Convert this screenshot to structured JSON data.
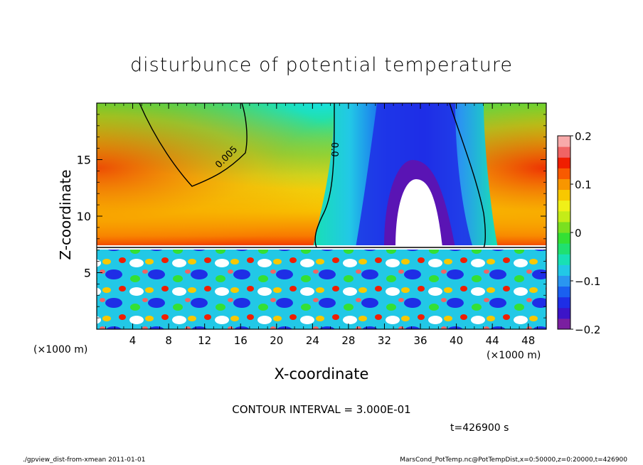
{
  "chart_data": {
    "type": "heatmap",
    "title": "disturbunce of potential temperature",
    "xlabel": "X-coordinate",
    "ylabel": "Z-coordinate",
    "x_units": "(×1000 m)",
    "y_units": "(×1000 m)",
    "x_range": [
      0,
      50
    ],
    "y_range": [
      0,
      20
    ],
    "x_ticks": [
      4,
      8,
      12,
      16,
      20,
      24,
      28,
      32,
      36,
      40,
      44,
      48
    ],
    "y_ticks": [
      5,
      10,
      15
    ],
    "colorbar": {
      "range": [
        -0.2,
        0.2
      ],
      "tick_labels": [
        "0.2",
        "0.1",
        "0",
        "−0.1",
        "−0.2"
      ],
      "tick_values": [
        0.2,
        0.1,
        0,
        -0.1,
        -0.2
      ],
      "colors": [
        "#7a1fa0",
        "#3c14c8",
        "#1e2ee6",
        "#1a60f0",
        "#2a96f0",
        "#22c8e6",
        "#18e0b4",
        "#20e070",
        "#34e034",
        "#7ae020",
        "#c4ec18",
        "#f0f018",
        "#f8c800",
        "#f89600",
        "#f85a00",
        "#f01e00",
        "#f06464",
        "#f8aaaa"
      ]
    },
    "contour_labels": [
      "0.005",
      "0.0"
    ],
    "contour_interval": "CONTOUR INTERVAL = 3.000E-01",
    "time": "t=426900 s"
  },
  "footer": {
    "left": "./gpview_dist-from-xmean  2011-01-01",
    "right": "MarsCond_PotTemp.nc@PotTempDist,x=0:50000,z=0:20000,t=426900"
  }
}
